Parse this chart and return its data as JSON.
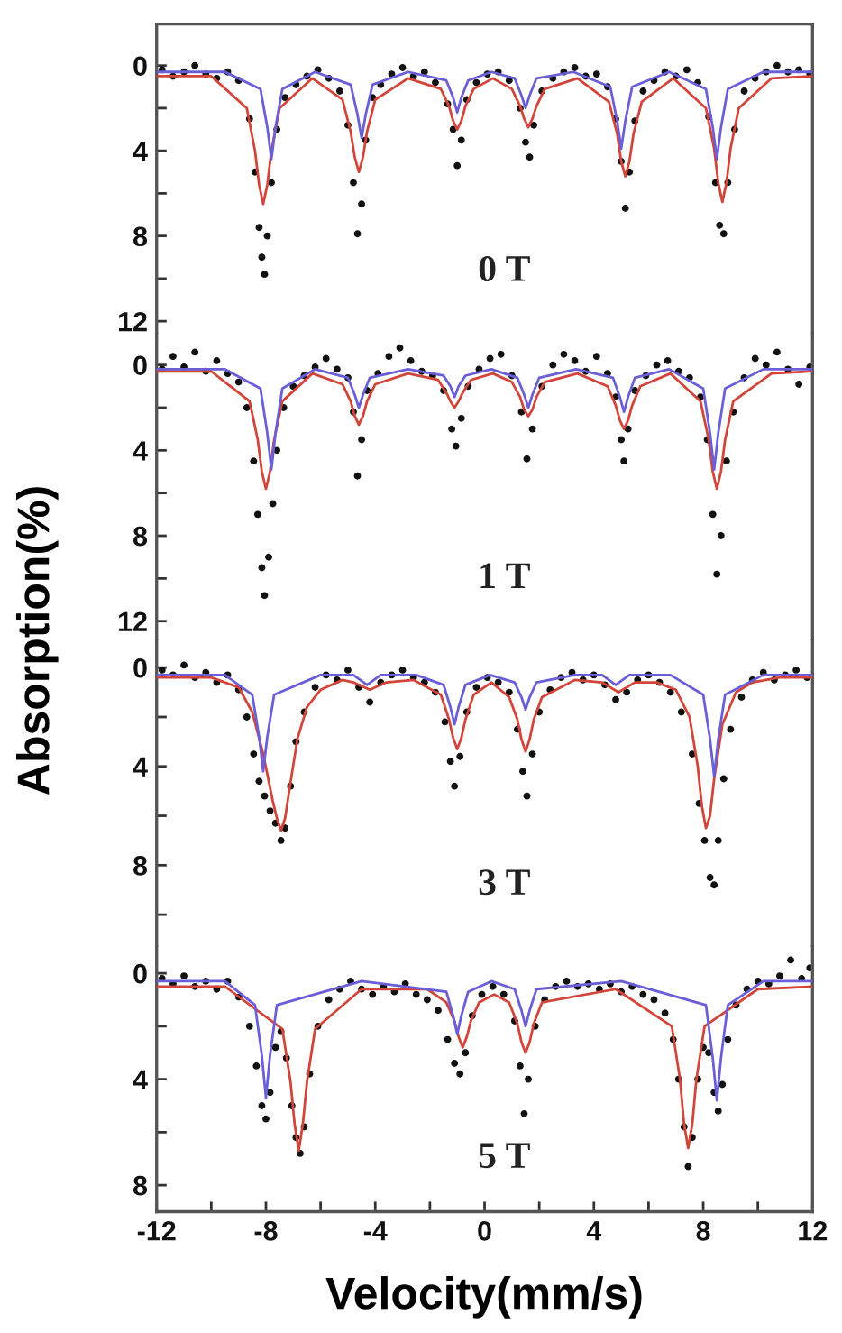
{
  "chart_data": [
    {
      "type": "scatter",
      "annotations": [
        "0 T"
      ],
      "xlim": [
        -12,
        12
      ],
      "ylim": [
        12.6,
        -1.95
      ],
      "yticks": [
        0,
        {
          "value": 2,
          "label": null
        },
        4,
        {
          "value": 6,
          "label": null
        },
        8,
        {
          "value": 10,
          "label": null
        },
        12
      ],
      "tick_labels": "y",
      "series": [
        {
          "type": "scatter",
          "marker": "circle",
          "color": "#111111",
          "x": [
            -11.8,
            -11.4,
            -11.0,
            -10.6,
            -10.2,
            -9.8,
            -9.4,
            -9.0,
            -8.6,
            -8.4,
            -8.25,
            -8.15,
            -8.05,
            -7.95,
            -7.8,
            -7.6,
            -7.3,
            -6.9,
            -6.5,
            -6.1,
            -5.7,
            -5.3,
            -5.0,
            -4.8,
            -4.65,
            -4.5,
            -4.35,
            -4.1,
            -3.8,
            -3.4,
            -3.0,
            -2.6,
            -2.2,
            -1.8,
            -1.35,
            -1.15,
            -1.0,
            -0.85,
            -0.65,
            -0.3,
            0.1,
            0.5,
            0.9,
            1.3,
            1.5,
            1.65,
            1.8,
            2.1,
            2.5,
            2.9,
            3.3,
            3.7,
            4.1,
            4.5,
            4.8,
            5.0,
            5.15,
            5.3,
            5.5,
            5.8,
            6.2,
            6.6,
            7.0,
            7.4,
            7.8,
            8.2,
            8.45,
            8.6,
            8.75,
            8.9,
            9.15,
            9.5,
            9.9,
            10.3,
            10.7,
            11.1,
            11.5,
            11.9
          ],
          "values": [
            0.2,
            0.5,
            0.3,
            0.0,
            0.4,
            0.6,
            0.3,
            0.7,
            2.5,
            5.0,
            7.6,
            9.0,
            9.8,
            8.0,
            5.5,
            3.0,
            1.5,
            0.9,
            0.5,
            0.2,
            0.6,
            1.2,
            2.8,
            5.5,
            7.9,
            6.5,
            3.5,
            1.5,
            0.9,
            0.4,
            0.1,
            0.5,
            0.3,
            0.8,
            1.8,
            3.0,
            4.7,
            3.5,
            1.6,
            0.8,
            0.4,
            0.3,
            0.7,
            2.0,
            3.6,
            4.3,
            2.8,
            1.2,
            0.6,
            0.3,
            0.1,
            0.5,
            0.4,
            1.0,
            2.5,
            4.5,
            6.7,
            5.0,
            2.6,
            1.2,
            0.7,
            0.3,
            0.5,
            0.2,
            0.8,
            2.4,
            5.5,
            7.5,
            7.9,
            5.5,
            3.0,
            1.2,
            0.6,
            0.3,
            0.0,
            0.3,
            0.2,
            0.4
          ]
        },
        {
          "type": "line",
          "color": "#d2453a",
          "x": [
            -12,
            -10,
            -8.7,
            -8.4,
            -8.25,
            -8.1,
            -7.95,
            -7.8,
            -7.5,
            -6.3,
            -5.2,
            -4.9,
            -4.75,
            -4.6,
            -4.45,
            -4.3,
            -4.0,
            -2.8,
            -1.6,
            -1.3,
            -1.15,
            -1.0,
            -0.85,
            -0.7,
            -0.4,
            0.3,
            1.0,
            1.3,
            1.45,
            1.6,
            1.75,
            1.9,
            2.2,
            3.4,
            4.55,
            4.85,
            5.0,
            5.15,
            5.3,
            5.45,
            5.75,
            6.9,
            8.1,
            8.4,
            8.55,
            8.7,
            8.85,
            9.0,
            9.3,
            10.5,
            12
          ],
          "values": [
            0.5,
            0.5,
            2.0,
            4.0,
            5.6,
            6.5,
            5.6,
            4.0,
            2.0,
            0.6,
            1.6,
            3.1,
            4.3,
            5.0,
            4.3,
            3.1,
            1.6,
            0.6,
            1.1,
            1.9,
            2.6,
            3.0,
            2.6,
            1.9,
            1.1,
            0.6,
            1.1,
            1.9,
            2.5,
            2.9,
            2.5,
            1.9,
            1.1,
            0.6,
            1.7,
            3.2,
            4.5,
            5.2,
            4.5,
            3.2,
            1.7,
            0.6,
            2.0,
            3.9,
            5.5,
            6.4,
            5.5,
            3.9,
            2.0,
            0.6,
            0.5
          ]
        },
        {
          "type": "line",
          "color": "#6a5fd6",
          "x": [
            -12,
            -9.5,
            -8.2,
            -7.95,
            -7.8,
            -7.65,
            -7.4,
            -6.2,
            -4.9,
            -4.65,
            -4.5,
            -4.35,
            -4.1,
            -2.8,
            -1.4,
            -1.15,
            -1.0,
            -0.85,
            -0.6,
            0.25,
            1.1,
            1.35,
            1.5,
            1.65,
            1.9,
            3.25,
            4.6,
            4.85,
            5.0,
            5.15,
            5.4,
            6.75,
            8.1,
            8.35,
            8.5,
            8.65,
            8.9,
            10.2,
            12
          ],
          "values": [
            0.3,
            0.3,
            1.1,
            2.9,
            4.4,
            2.9,
            1.1,
            0.3,
            0.9,
            2.3,
            3.4,
            2.3,
            0.9,
            0.3,
            0.7,
            1.5,
            2.2,
            1.5,
            0.7,
            0.3,
            0.6,
            1.4,
            2.0,
            1.4,
            0.6,
            0.3,
            1.0,
            2.6,
            3.9,
            2.6,
            1.0,
            0.3,
            1.1,
            2.9,
            4.4,
            2.9,
            1.1,
            0.3,
            0.3
          ]
        }
      ]
    },
    {
      "type": "scatter",
      "annotations": [
        "1 T"
      ],
      "ylabel": "Absorption(%)",
      "xlim": [
        -12,
        12
      ],
      "ylim": [
        12.9,
        -1.45
      ],
      "yticks": [
        0,
        {
          "value": 2,
          "label": null
        },
        4,
        {
          "value": 6,
          "label": null
        },
        8,
        {
          "value": 10,
          "label": null
        },
        12
      ],
      "tick_labels": "y",
      "series": [
        {
          "type": "scatter",
          "marker": "circle",
          "color": "#111111",
          "x": [
            -11.8,
            -11.4,
            -11.0,
            -10.6,
            -10.2,
            -9.8,
            -9.4,
            -9.0,
            -8.7,
            -8.45,
            -8.3,
            -8.15,
            -8.05,
            -7.9,
            -7.75,
            -7.6,
            -7.35,
            -7.0,
            -6.6,
            -6.2,
            -5.8,
            -5.4,
            -5.0,
            -4.8,
            -4.65,
            -4.5,
            -4.3,
            -3.9,
            -3.5,
            -3.1,
            -2.7,
            -2.3,
            -1.9,
            -1.5,
            -1.2,
            -1.05,
            -0.85,
            -0.6,
            -0.2,
            0.2,
            0.6,
            1.0,
            1.35,
            1.55,
            1.75,
            2.1,
            2.5,
            2.9,
            3.3,
            3.7,
            4.1,
            4.5,
            4.8,
            5.0,
            5.1,
            5.25,
            5.5,
            5.9,
            6.3,
            6.7,
            7.1,
            7.5,
            7.9,
            8.15,
            8.35,
            8.5,
            8.65,
            8.85,
            9.1,
            9.5,
            9.9,
            10.3,
            10.7,
            11.1,
            11.5,
            11.9
          ],
          "values": [
            0.2,
            -0.4,
            0.1,
            -0.6,
            0.3,
            -0.2,
            0.4,
            0.8,
            2.0,
            4.5,
            7.0,
            9.5,
            10.8,
            9.0,
            6.5,
            4.0,
            2.0,
            1.0,
            0.5,
            0.1,
            -0.3,
            0.2,
            0.6,
            2.2,
            5.2,
            3.5,
            1.2,
            0.4,
            -0.4,
            -0.8,
            -0.2,
            0.3,
            0.5,
            1.2,
            3.0,
            3.8,
            2.5,
            1.0,
            0.2,
            -0.3,
            -0.5,
            0.5,
            2.2,
            4.4,
            3.0,
            1.0,
            0.0,
            -0.5,
            -0.2,
            0.3,
            -0.4,
            0.4,
            1.5,
            3.5,
            4.5,
            3.0,
            1.2,
            0.5,
            0.0,
            -0.2,
            0.3,
            0.6,
            1.5,
            3.5,
            7.0,
            9.8,
            8.0,
            4.5,
            2.2,
            0.6,
            -0.3,
            0.0,
            -0.6,
            0.2,
            0.9,
            0.1
          ]
        },
        {
          "type": "line",
          "color": "#d2453a",
          "x": [
            -12,
            -10,
            -8.6,
            -8.3,
            -8.15,
            -8.0,
            -7.85,
            -7.7,
            -7.4,
            -6.3,
            -5.2,
            -4.9,
            -4.75,
            -4.6,
            -4.45,
            -4.3,
            -4.0,
            -2.8,
            -1.7,
            -1.4,
            -1.25,
            -1.1,
            -0.95,
            -0.8,
            -0.5,
            0.3,
            1.0,
            1.3,
            1.45,
            1.6,
            1.75,
            1.9,
            2.2,
            3.4,
            4.5,
            4.8,
            4.95,
            5.1,
            5.25,
            5.4,
            5.7,
            6.8,
            7.9,
            8.2,
            8.35,
            8.5,
            8.65,
            8.8,
            9.1,
            10.5,
            12
          ],
          "values": [
            0.3,
            0.3,
            1.7,
            3.5,
            5.0,
            5.8,
            5.0,
            3.5,
            1.7,
            0.4,
            0.9,
            1.7,
            2.4,
            2.8,
            2.4,
            1.7,
            0.9,
            0.4,
            0.7,
            1.3,
            1.7,
            2.0,
            1.7,
            1.3,
            0.7,
            0.4,
            0.8,
            1.5,
            2.1,
            2.4,
            2.1,
            1.5,
            0.8,
            0.4,
            1.0,
            1.9,
            2.6,
            3.0,
            2.6,
            1.9,
            1.0,
            0.4,
            1.7,
            3.5,
            5.0,
            5.8,
            5.0,
            3.5,
            1.7,
            0.4,
            0.3
          ]
        },
        {
          "type": "line",
          "color": "#6a5fd6",
          "x": [
            -12,
            -9.5,
            -8.2,
            -7.95,
            -7.8,
            -7.65,
            -7.4,
            -6.2,
            -5.0,
            -4.75,
            -4.6,
            -4.45,
            -4.2,
            -2.8,
            -1.5,
            -1.25,
            -1.1,
            -0.95,
            -0.7,
            0.25,
            1.2,
            1.45,
            1.6,
            1.75,
            2.0,
            3.35,
            4.7,
            4.95,
            5.1,
            5.25,
            5.5,
            6.75,
            8.0,
            8.25,
            8.4,
            8.55,
            8.8,
            10.2,
            12
          ],
          "values": [
            0.2,
            0.2,
            1.1,
            3.2,
            4.9,
            3.2,
            1.1,
            0.2,
            0.6,
            1.4,
            2.0,
            1.4,
            0.6,
            0.2,
            0.5,
            1.0,
            1.5,
            1.0,
            0.5,
            0.2,
            0.6,
            1.4,
            2.0,
            1.4,
            0.6,
            0.2,
            0.6,
            1.5,
            2.2,
            1.5,
            0.6,
            0.2,
            1.1,
            3.2,
            4.9,
            3.2,
            1.1,
            0.2,
            0.2
          ]
        }
      ]
    },
    {
      "type": "scatter",
      "annotations": [
        "3 T"
      ],
      "xlim": [
        -12,
        12
      ],
      "ylim": [
        11.3,
        -1.1
      ],
      "yticks": [
        0,
        {
          "value": 2,
          "label": null
        },
        4,
        {
          "value": 6,
          "label": null
        },
        8,
        {
          "value": 10,
          "label": null
        }
      ],
      "tick_labels": "y",
      "series": [
        {
          "type": "scatter",
          "marker": "circle",
          "color": "#111111",
          "x": [
            -11.8,
            -11.4,
            -11.0,
            -10.6,
            -10.2,
            -9.8,
            -9.4,
            -9.0,
            -8.7,
            -8.45,
            -8.25,
            -8.05,
            -7.85,
            -7.65,
            -7.45,
            -7.3,
            -7.1,
            -6.9,
            -6.6,
            -6.2,
            -5.8,
            -5.4,
            -5.0,
            -4.6,
            -4.2,
            -3.8,
            -3.4,
            -3.0,
            -2.6,
            -2.2,
            -1.8,
            -1.45,
            -1.25,
            -1.1,
            -0.9,
            -0.65,
            -0.3,
            0.1,
            0.5,
            0.9,
            1.2,
            1.4,
            1.55,
            1.75,
            2.0,
            2.4,
            2.8,
            3.2,
            3.6,
            4.0,
            4.4,
            4.8,
            5.2,
            5.6,
            6.0,
            6.4,
            6.8,
            7.2,
            7.6,
            7.85,
            8.05,
            8.25,
            8.4,
            8.55,
            8.75,
            9.0,
            9.4,
            9.8,
            10.2,
            10.6,
            11.0,
            11.4,
            11.8
          ],
          "values": [
            0.1,
            0.3,
            -0.1,
            0.4,
            0.2,
            0.6,
            0.3,
            0.9,
            2.0,
            3.5,
            4.6,
            5.2,
            5.8,
            6.3,
            7.0,
            6.5,
            4.8,
            3.0,
            1.8,
            0.8,
            0.3,
            0.5,
            0.1,
            0.8,
            1.4,
            0.6,
            0.3,
            0.1,
            0.4,
            0.6,
            1.0,
            2.2,
            3.8,
            4.8,
            3.6,
            1.8,
            0.8,
            0.4,
            0.6,
            1.0,
            2.5,
            4.2,
            5.2,
            3.5,
            1.8,
            0.9,
            0.4,
            0.2,
            0.5,
            0.3,
            0.7,
            1.3,
            1.0,
            0.5,
            0.3,
            0.6,
            1.0,
            1.8,
            3.5,
            5.5,
            7.0,
            8.5,
            8.8,
            7.0,
            4.5,
            2.5,
            1.2,
            0.5,
            0.2,
            0.5,
            0.3,
            0.1,
            0.4
          ]
        },
        {
          "type": "line",
          "color": "#d2453a",
          "x": [
            -12,
            -10,
            -9.0,
            -8.5,
            -8.1,
            -7.75,
            -7.6,
            -7.45,
            -7.3,
            -7.15,
            -6.85,
            -6.5,
            -6.0,
            -5.2,
            -4.8,
            -4.2,
            -3.6,
            -2.6,
            -1.6,
            -1.3,
            -1.15,
            -1.0,
            -0.85,
            -0.7,
            -0.4,
            0.25,
            0.9,
            1.2,
            1.35,
            1.5,
            1.65,
            1.8,
            2.1,
            3.3,
            4.3,
            4.9,
            5.5,
            6.3,
            7.0,
            7.5,
            7.8,
            7.95,
            8.1,
            8.25,
            8.4,
            8.7,
            9.2,
            9.8,
            10.8,
            12
          ],
          "values": [
            0.4,
            0.4,
            0.8,
            1.8,
            3.5,
            5.4,
            6.1,
            6.6,
            6.1,
            5.0,
            2.9,
            1.6,
            0.9,
            0.5,
            0.6,
            0.9,
            0.6,
            0.5,
            1.1,
            2.1,
            2.85,
            3.3,
            2.85,
            2.1,
            1.1,
            0.6,
            1.2,
            2.1,
            2.9,
            3.4,
            2.9,
            2.1,
            1.2,
            0.5,
            0.6,
            1.0,
            0.6,
            0.6,
            0.9,
            2.0,
            4.0,
            5.6,
            6.5,
            6.0,
            4.5,
            2.3,
            1.0,
            0.6,
            0.4,
            0.4
          ]
        },
        {
          "type": "line",
          "color": "#6a5fd6",
          "x": [
            -12,
            -9.5,
            -8.5,
            -8.25,
            -8.1,
            -7.95,
            -7.7,
            -6.0,
            -4.8,
            -4.3,
            -3.8,
            -2.5,
            -1.5,
            -1.25,
            -1.1,
            -0.95,
            -0.7,
            0.2,
            1.1,
            1.35,
            1.5,
            1.65,
            1.9,
            3.3,
            4.3,
            4.8,
            5.3,
            6.8,
            8.0,
            8.25,
            8.4,
            8.55,
            8.8,
            10.2,
            12
          ],
          "values": [
            0.3,
            0.3,
            1.1,
            2.8,
            4.2,
            2.8,
            1.1,
            0.3,
            0.3,
            0.7,
            0.3,
            0.3,
            0.7,
            1.6,
            2.3,
            1.6,
            0.7,
            0.3,
            0.6,
            1.2,
            1.7,
            1.2,
            0.6,
            0.3,
            0.3,
            0.7,
            0.3,
            0.3,
            1.1,
            2.9,
            4.4,
            2.9,
            1.1,
            0.3,
            0.3
          ]
        }
      ]
    },
    {
      "type": "scatter",
      "annotations": [
        "5 T"
      ],
      "xlabel": "Velocity(mm/s)",
      "xlim": [
        -12,
        12
      ],
      "ylim": [
        9.0,
        -1.0
      ],
      "xticks": [
        -12,
        {
          "value": -10,
          "label": null
        },
        -8,
        {
          "value": -6,
          "label": null
        },
        -4,
        {
          "value": -2,
          "label": null
        },
        0,
        {
          "value": 2,
          "label": null
        },
        4,
        {
          "value": 6,
          "label": null
        },
        8,
        {
          "value": 10,
          "label": null
        },
        12
      ],
      "yticks": [
        0,
        {
          "value": 2,
          "label": null
        },
        4,
        {
          "value": 6,
          "label": null
        },
        8
      ],
      "series": [
        {
          "type": "scatter",
          "marker": "circle",
          "color": "#111111",
          "x": [
            -11.8,
            -11.4,
            -11.0,
            -10.6,
            -10.2,
            -9.8,
            -9.4,
            -9.0,
            -8.6,
            -8.35,
            -8.15,
            -8.0,
            -7.85,
            -7.65,
            -7.45,
            -7.25,
            -7.05,
            -6.9,
            -6.75,
            -6.6,
            -6.4,
            -6.1,
            -5.7,
            -5.3,
            -4.9,
            -4.5,
            -4.1,
            -3.7,
            -3.3,
            -2.9,
            -2.5,
            -2.1,
            -1.7,
            -1.35,
            -1.1,
            -0.9,
            -0.7,
            -0.45,
            -0.1,
            0.3,
            0.7,
            1.1,
            1.3,
            1.45,
            1.6,
            1.85,
            2.2,
            2.6,
            3.0,
            3.4,
            3.8,
            4.2,
            4.6,
            5.0,
            5.4,
            5.8,
            6.2,
            6.6,
            6.9,
            7.1,
            7.3,
            7.45,
            7.6,
            7.8,
            8.0,
            8.2,
            8.4,
            8.55,
            8.7,
            8.9,
            9.2,
            9.6,
            10.0,
            10.4,
            10.8,
            11.2,
            11.6,
            11.9
          ],
          "values": [
            0.2,
            0.4,
            0.1,
            0.5,
            0.3,
            0.6,
            0.3,
            0.9,
            2.0,
            3.5,
            5.0,
            5.5,
            4.5,
            2.8,
            2.2,
            3.2,
            5.0,
            6.2,
            6.8,
            5.8,
            3.8,
            2.0,
            1.0,
            0.6,
            0.3,
            0.6,
            0.8,
            0.5,
            0.7,
            0.4,
            0.8,
            1.0,
            1.4,
            2.5,
            3.4,
            3.8,
            3.0,
            1.6,
            0.8,
            0.5,
            0.8,
            1.8,
            3.5,
            5.3,
            4.0,
            2.0,
            1.0,
            0.5,
            0.3,
            0.5,
            0.4,
            0.6,
            0.4,
            0.7,
            0.5,
            0.8,
            1.0,
            1.5,
            2.5,
            4.0,
            5.8,
            7.3,
            6.2,
            4.0,
            2.8,
            3.0,
            4.5,
            5.2,
            4.2,
            2.5,
            1.2,
            0.6,
            0.3,
            0.4,
            0.1,
            -0.5,
            0.2,
            -0.2
          ]
        },
        {
          "type": "line",
          "color": "#d2453a",
          "x": [
            -12,
            -9.5,
            -7.4,
            -7.1,
            -6.95,
            -6.8,
            -6.65,
            -6.5,
            -6.2,
            -4.5,
            -2.1,
            -1.4,
            -1.1,
            -0.95,
            -0.8,
            -0.65,
            -0.5,
            -0.2,
            0.35,
            0.9,
            1.2,
            1.35,
            1.5,
            1.65,
            1.8,
            2.1,
            4.8,
            6.85,
            7.15,
            7.3,
            7.45,
            7.6,
            7.75,
            8.05,
            10.0,
            12
          ],
          "values": [
            0.5,
            0.5,
            2.1,
            4.1,
            5.7,
            6.7,
            5.7,
            4.1,
            2.1,
            0.6,
            0.6,
            1.1,
            1.8,
            2.4,
            2.8,
            2.4,
            1.8,
            1.1,
            0.8,
            1.1,
            1.9,
            2.6,
            3.0,
            2.6,
            1.9,
            1.1,
            0.6,
            2.0,
            4.0,
            5.7,
            6.6,
            5.7,
            4.0,
            2.0,
            0.6,
            0.5
          ]
        },
        {
          "type": "line",
          "color": "#6a5fd6",
          "x": [
            -12,
            -9.5,
            -8.4,
            -8.15,
            -8.0,
            -7.85,
            -7.6,
            -4.5,
            -1.4,
            -1.15,
            -1.0,
            -0.85,
            -0.6,
            0.25,
            1.1,
            1.35,
            1.5,
            1.65,
            1.9,
            5.0,
            8.1,
            8.35,
            8.5,
            8.65,
            8.9,
            10.2,
            12
          ],
          "values": [
            0.3,
            0.3,
            1.2,
            3.1,
            4.7,
            3.1,
            1.2,
            0.3,
            0.7,
            1.6,
            2.3,
            1.6,
            0.7,
            0.3,
            0.6,
            1.4,
            2.0,
            1.4,
            0.6,
            0.3,
            1.2,
            3.2,
            4.8,
            3.2,
            1.2,
            0.3,
            0.3
          ]
        }
      ]
    }
  ]
}
